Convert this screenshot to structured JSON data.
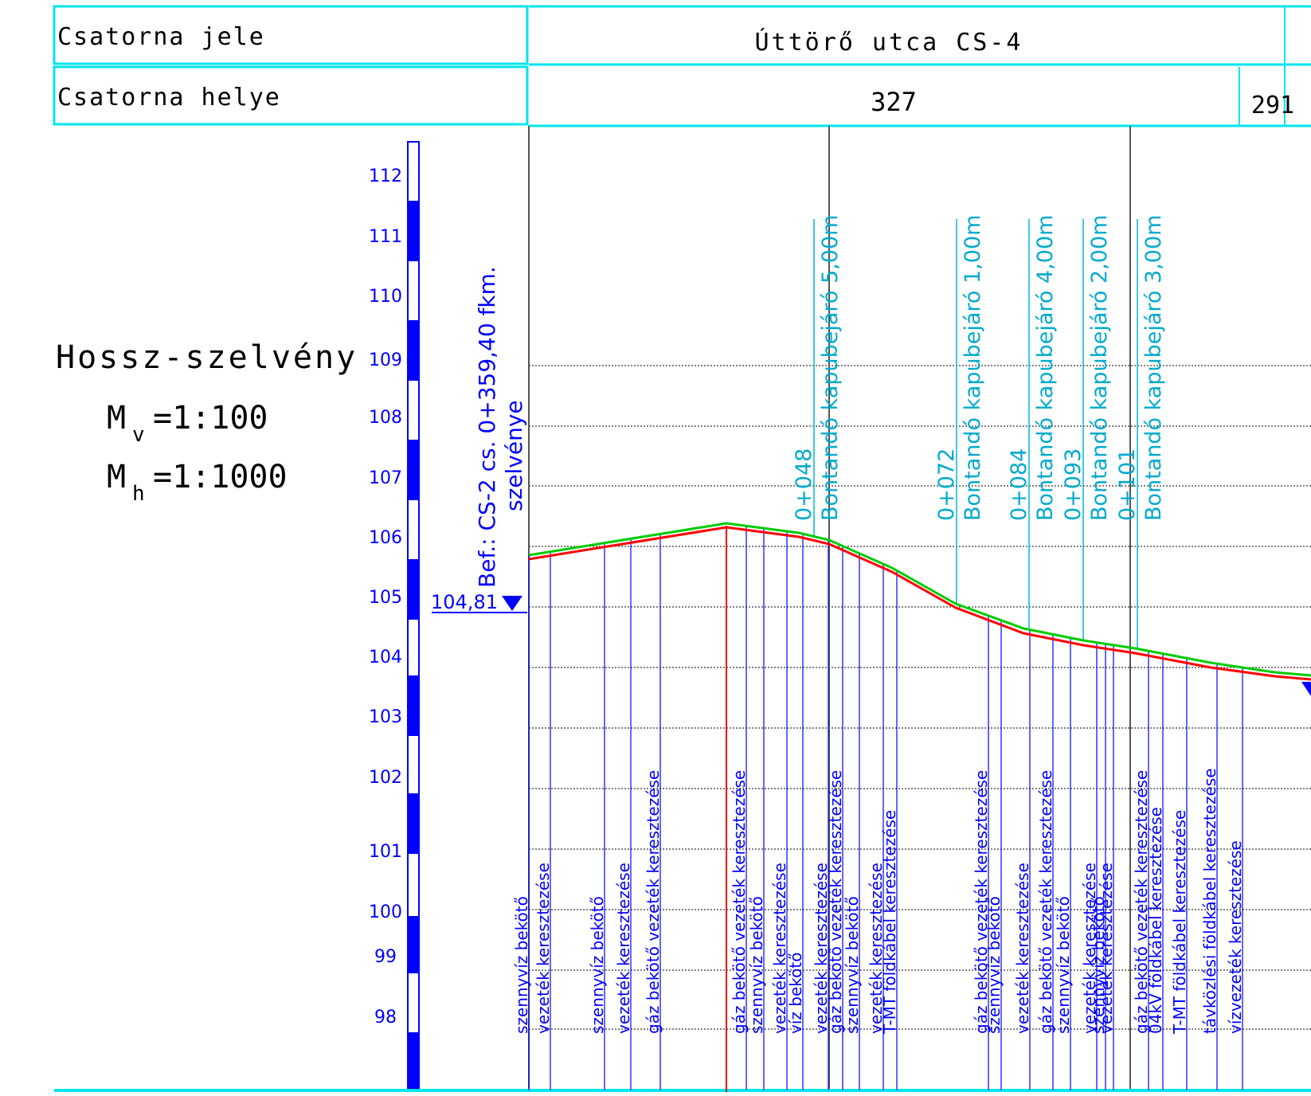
{
  "header": {
    "row1_label": "Csatorna jele",
    "row1_value": "Úttörő utca CS-4",
    "row2_label": "Csatorna helye",
    "row2_value_main": "327",
    "row2_value_side": "291"
  },
  "title": {
    "main": "Hossz-szelvény",
    "mv_prefix": "M",
    "mv_sub": "v",
    "mv_value": "=1:100",
    "mh_prefix": "M",
    "mh_sub": "h",
    "mh_value": "=1:1000"
  },
  "scale_ticks": [
    "112",
    "111",
    "110",
    "109",
    "108",
    "107",
    "106",
    "105",
    "104",
    "103",
    "102",
    "101",
    "100",
    "99",
    "98"
  ],
  "connection": {
    "line1": "Bef.:  CS-2 cs. 0+359,40 fkm.",
    "line2": "szelvénye",
    "level": "104,81"
  },
  "stations": [
    {
      "station": "0+048",
      "note": "Bontandó kapubejáró 5,00m"
    },
    {
      "station": "0+072",
      "note": "Bontandó kapubejáró 1,00m"
    },
    {
      "station": "0+084",
      "note": "Bontandó kapubejáró 4,00m"
    },
    {
      "station": "0+093",
      "note": "Bontandó kapubejáró 2,00m"
    },
    {
      "station": "0+101",
      "note": "Bontandó kapubejáró 3,00m"
    }
  ],
  "crossings": [
    "szennyvíz bekötő",
    "vezeték keresztezése",
    "szennyvíz bekötő",
    "vezeték keresztezése",
    "gáz bekötő vezeték keresztezése",
    "gáz bekötő vezeték keresztezése",
    "szennyvíz bekötő",
    "vezeték keresztezése",
    "víz bekötő",
    "vezeték keresztezése",
    "gáz bekötő vezeték keresztezése",
    "szennyvíz bekötő",
    "vezeték keresztezése",
    "T-MT földkábel keresztezése",
    "gáz bekötő vezeték keresztezése",
    "szennyvíz bekötő",
    "vezeték keresztezése",
    "gáz bekötő vezeték keresztezése",
    "szennyvíz bekötő",
    "vezeték keresztezése",
    "szennyvíz bekötő",
    "vezeték keresztezése",
    "gáz bekötő vezeték keresztezése",
    "04kV földkábel keresztezése",
    "T-MT földkábel keresztezése",
    "távközlési földkábel keresztezése",
    "vízvezeték keresztezése"
  ],
  "colors": {
    "frame": "#00e5ee",
    "blue": "#0000ff",
    "ground": "#00cc00",
    "pipe": "#ff0000",
    "gray": "#555555",
    "cyan_text": "#00aacc"
  }
}
